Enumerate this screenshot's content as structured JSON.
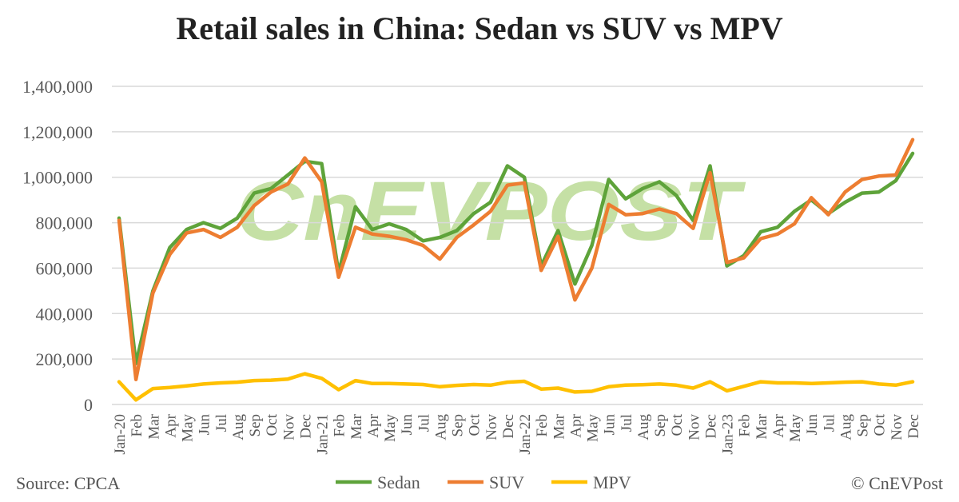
{
  "chart_data": {
    "type": "line",
    "title": "Retail sales in China: Sedan vs SUV vs MPV",
    "xlabel": "",
    "ylabel": "",
    "ylim": [
      0,
      1400000
    ],
    "yticks": [
      0,
      200000,
      400000,
      600000,
      800000,
      1000000,
      1200000,
      1400000
    ],
    "ytick_labels": [
      "0",
      "200,000",
      "400,000",
      "600,000",
      "800,000",
      "1,000,000",
      "1,200,000",
      "1,400,000"
    ],
    "grid": true,
    "legend_position": "bottom",
    "categories": [
      "Jan-20",
      "Feb",
      "Mar",
      "Apr",
      "May",
      "Jun",
      "Jul",
      "Aug",
      "Sep",
      "Oct",
      "Nov",
      "Dec",
      "Jan-21",
      "Feb",
      "Mar",
      "Apr",
      "May",
      "Jun",
      "Jul",
      "Aug",
      "Sep",
      "Oct",
      "Nov",
      "Dec",
      "Jan-22",
      "Feb",
      "Mar",
      "Apr",
      "May",
      "Jun",
      "Jul",
      "Aug",
      "Sep",
      "Oct",
      "Nov",
      "Dec",
      "Jan-23",
      "Feb",
      "Mar",
      "Apr",
      "May",
      "Jun",
      "Jul",
      "Aug",
      "Sep",
      "Oct",
      "Nov",
      "Dec"
    ],
    "series": [
      {
        "name": "Sedan",
        "color": "#5ea33a",
        "values": [
          820000,
          180000,
          500000,
          690000,
          770000,
          800000,
          775000,
          820000,
          930000,
          950000,
          1010000,
          1070000,
          1060000,
          580000,
          870000,
          770000,
          795000,
          770000,
          720000,
          735000,
          765000,
          840000,
          890000,
          1050000,
          1000000,
          610000,
          765000,
          530000,
          700000,
          990000,
          905000,
          950000,
          980000,
          920000,
          810000,
          1050000,
          610000,
          655000,
          760000,
          780000,
          850000,
          900000,
          840000,
          890000,
          930000,
          935000,
          985000,
          1105000
        ]
      },
      {
        "name": "SUV",
        "color": "#ed7d31",
        "values": [
          810000,
          110000,
          490000,
          660000,
          755000,
          770000,
          735000,
          780000,
          875000,
          935000,
          970000,
          1085000,
          980000,
          560000,
          780000,
          750000,
          740000,
          725000,
          700000,
          640000,
          735000,
          790000,
          850000,
          965000,
          975000,
          590000,
          740000,
          460000,
          600000,
          880000,
          835000,
          840000,
          860000,
          840000,
          775000,
          1020000,
          625000,
          645000,
          730000,
          750000,
          795000,
          910000,
          835000,
          935000,
          990000,
          1005000,
          1010000,
          1165000
        ]
      },
      {
        "name": "MPV",
        "color": "#ffc000",
        "values": [
          100000,
          20000,
          70000,
          75000,
          82000,
          90000,
          95000,
          98000,
          105000,
          107000,
          112000,
          135000,
          115000,
          65000,
          105000,
          92000,
          92000,
          90000,
          88000,
          78000,
          84000,
          88000,
          85000,
          98000,
          102000,
          68000,
          72000,
          55000,
          58000,
          78000,
          85000,
          87000,
          90000,
          85000,
          72000,
          100000,
          60000,
          80000,
          100000,
          95000,
          95000,
          92000,
          95000,
          98000,
          100000,
          90000,
          85000,
          100000
        ]
      }
    ]
  },
  "source": "Source: CPCA",
  "copyright": "© CnEVPost",
  "watermark": "CnEVPOST"
}
